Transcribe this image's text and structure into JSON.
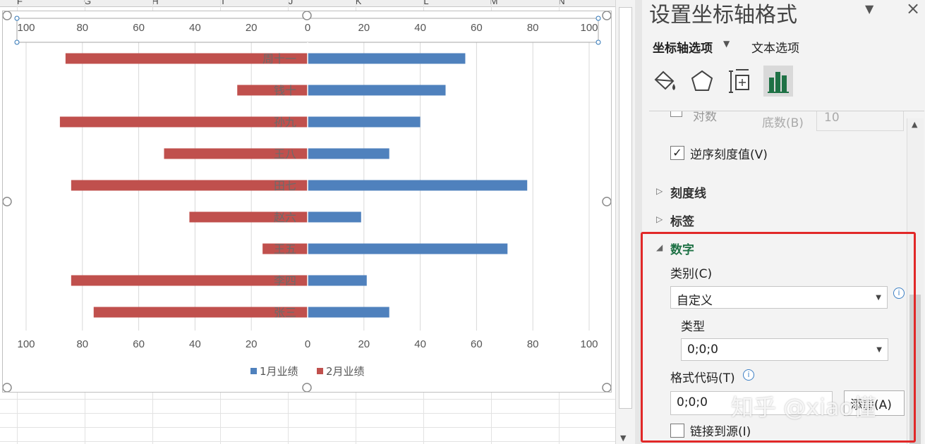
{
  "sheet": {
    "columns": [
      "F",
      "G",
      "H",
      "I",
      "J",
      "K",
      "L",
      "M",
      "N"
    ]
  },
  "chart_data": {
    "type": "bar",
    "orientation": "horizontal",
    "categories": [
      "周十一",
      "钱十",
      "孙九",
      "王八",
      "田七",
      "赵六",
      "王五",
      "李四",
      "张三"
    ],
    "series": [
      {
        "name": "1月业绩",
        "color": "#4f81bd",
        "values": [
          56,
          49,
          40,
          29,
          78,
          19,
          71,
          21,
          29
        ]
      },
      {
        "name": "2月业绩",
        "color": "#c0504d",
        "values": [
          86,
          25,
          88,
          51,
          84,
          42,
          16,
          84,
          76
        ]
      }
    ],
    "xlim": [
      -100,
      100
    ],
    "ticks": [
      -100,
      -80,
      -60,
      -40,
      -20,
      0,
      20,
      40,
      60,
      80,
      100
    ],
    "tick_labels": [
      "100",
      "80",
      "60",
      "40",
      "20",
      "0",
      "20",
      "40",
      "60",
      "80",
      "100"
    ],
    "grid": true,
    "legend": "bottom"
  },
  "panel": {
    "title": "设置坐标轴格式",
    "collapse_icon": "chevron-down-icon",
    "close_label": "×",
    "tabs": {
      "axis_options": "坐标轴选项",
      "text_options": "文本选项"
    },
    "icons": [
      "fill-line-icon",
      "effects-pentagon-icon",
      "size-properties-icon",
      "axis-options-bar-icon"
    ],
    "log_scale": {
      "label": "对数",
      "base_label": "底数(B)",
      "base_value": "10"
    },
    "reverse_order": {
      "label": "逆序刻度值(V)",
      "checked": true
    },
    "sections": {
      "tick_marks": "刻度线",
      "labels": "标签",
      "number": "数字"
    },
    "number": {
      "category_label": "类别(C)",
      "category_value": "自定义",
      "type_label": "类型",
      "type_value": "0;0;0",
      "format_code_label": "格式代码(T)",
      "format_code_value": "0;0;0",
      "add_button": "添加(A)",
      "link_label": "链接到源(I)",
      "link_checked": false
    },
    "info_glyph": "i",
    "caret_right": "▷",
    "caret_down": "◢",
    "check_glyph": "✓",
    "dropdown_arrow": "▼",
    "highlight_color": "#e12828"
  },
  "watermark": "知乎 @xiao懂"
}
